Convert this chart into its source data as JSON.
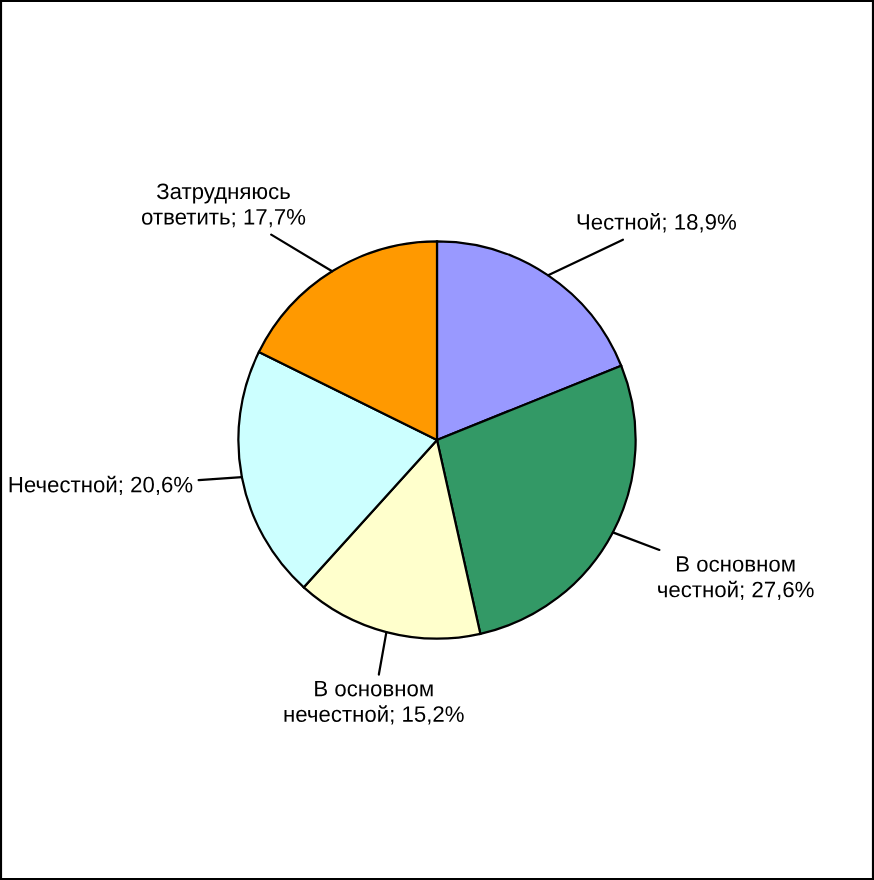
{
  "chart_data": {
    "type": "pie",
    "categories": [
      "Честной",
      "В основном честной",
      "В основном нечестной",
      "Нечестной",
      "Затрудняюсь ответить"
    ],
    "values": [
      18.9,
      27.6,
      15.2,
      20.6,
      17.7
    ],
    "colors": [
      "#9999ff",
      "#339966",
      "#ffffcc",
      "#ccffff",
      "#ff9900"
    ],
    "value_labels": [
      "18,9%",
      "27,6%",
      "15,2%",
      "20,6%",
      "17,7%"
    ],
    "legend": false
  }
}
